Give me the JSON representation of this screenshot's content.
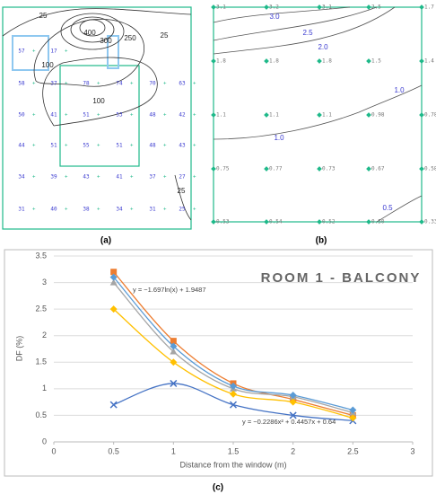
{
  "panel_a": {
    "caption": "(a)",
    "contour_labels": [
      "25",
      "400",
      "300",
      "250",
      "25",
      "100",
      "100",
      "25"
    ],
    "grid_values": [
      [
        "57",
        "17"
      ],
      [
        "58",
        "37",
        "78",
        "74",
        "70",
        "63"
      ],
      [
        "50",
        "41",
        "51",
        "53",
        "48",
        "42"
      ],
      [
        "44",
        "51",
        "55",
        "51",
        "48",
        "43"
      ],
      [
        "34",
        "39",
        "43",
        "41",
        "37",
        "27"
      ],
      [
        "31",
        "40",
        "38",
        "34",
        "31",
        "25"
      ]
    ]
  },
  "panel_b": {
    "caption": "(b)",
    "contour_labels": [
      "3.0",
      "2.5",
      "2.0",
      "1.0",
      "1.0",
      "0.5"
    ],
    "grid_values": [
      [
        "3.1",
        "3.2",
        "3.1",
        "2.5",
        "1.7"
      ],
      [
        "1.8",
        "1.8",
        "1.8",
        "1.5",
        "1.4"
      ],
      [
        "1.1",
        "1.1",
        "1.1",
        "0.98",
        "0.78"
      ],
      [
        "0.75",
        "0.77",
        "0.73",
        "0.67",
        "0.58"
      ],
      [
        "0.53",
        "0.54",
        "0.52",
        "0.50",
        "0.33"
      ]
    ]
  },
  "panel_c_caption": "(c)",
  "chart_data": {
    "type": "scatter",
    "title": "ROOM 1 - BALCONY",
    "x_label": "Distance from the window (m)",
    "y_label": "DF (%)",
    "annotations": [
      "y = −1.697ln(x) + 1.9487",
      "y = −0.2286x² + 0.4457x + 0.64"
    ],
    "x": [
      0.5,
      1,
      1.5,
      2,
      2.5
    ],
    "series": [
      {
        "color": "#4472c4",
        "marker": "x",
        "values": [
          0.7,
          1.1,
          0.7,
          0.5,
          0.4
        ]
      },
      {
        "color": "#ed7d31",
        "marker": "square",
        "values": [
          3.2,
          1.9,
          1.1,
          0.8,
          0.5
        ]
      },
      {
        "color": "#a5a5a5",
        "marker": "triangle",
        "values": [
          3.0,
          1.7,
          1.0,
          0.85,
          0.55
        ]
      },
      {
        "color": "#ffc000",
        "marker": "diamond",
        "values": [
          2.5,
          1.5,
          0.9,
          0.75,
          0.45
        ]
      },
      {
        "color": "#5b9bd5",
        "marker": "diamond",
        "values": [
          3.1,
          1.8,
          1.05,
          0.88,
          0.6
        ]
      }
    ],
    "xlim": [
      0,
      3
    ],
    "xticks": [
      0,
      0.5,
      1,
      1.5,
      2,
      2.5,
      3
    ],
    "ylim": [
      0,
      3.5
    ],
    "yticks": [
      0,
      0.5,
      1,
      1.5,
      2,
      2.5,
      3,
      3.5
    ],
    "grid": true
  }
}
